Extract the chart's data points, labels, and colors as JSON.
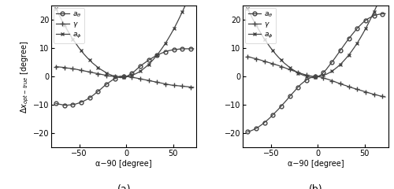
{
  "title_a": "(a)",
  "title_b": "(b)",
  "xlabel": "α−90 [degree]",
  "xlim": [
    -80,
    75
  ],
  "ylim": [
    -25,
    25
  ],
  "xticks": [
    -50,
    0,
    50
  ],
  "yticks": [
    -20,
    -10,
    0,
    10,
    20
  ],
  "legend_labels": [
    "$a_{\\theta}$",
    "$\\gamma$",
    "$a_{\\phi}$"
  ],
  "line_color": "#444444",
  "marker_every": 3,
  "panel_a": {
    "x": [
      -75,
      -72,
      -69,
      -66,
      -63,
      -60,
      -57,
      -54,
      -51,
      -48,
      -45,
      -42,
      -39,
      -36,
      -33,
      -30,
      -27,
      -24,
      -21,
      -18,
      -15,
      -12,
      -9,
      -6,
      -3,
      0,
      3,
      6,
      9,
      12,
      15,
      18,
      21,
      24,
      27,
      30,
      33,
      36,
      39,
      42,
      45,
      48,
      51,
      54,
      57,
      60,
      63,
      66,
      69,
      72
    ],
    "a_theta": [
      -9.5,
      -9.7,
      -9.9,
      -10.1,
      -10.1,
      -10.0,
      -9.9,
      -9.7,
      -9.4,
      -9.0,
      -8.6,
      -8.1,
      -7.5,
      -6.8,
      -6.0,
      -5.2,
      -4.4,
      -3.5,
      -2.7,
      -2.0,
      -1.3,
      -0.7,
      -0.2,
      0.1,
      0.0,
      0.0,
      0.5,
      1.2,
      1.9,
      2.8,
      3.6,
      4.4,
      5.1,
      5.8,
      6.4,
      7.0,
      7.5,
      8.0,
      8.4,
      8.8,
      9.1,
      9.3,
      9.5,
      9.6,
      9.7,
      9.8,
      9.8,
      9.8,
      9.8,
      9.8
    ],
    "gamma": [
      3.5,
      3.4,
      3.3,
      3.2,
      3.0,
      2.9,
      2.7,
      2.6,
      2.4,
      2.2,
      2.0,
      1.8,
      1.6,
      1.4,
      1.2,
      1.0,
      0.8,
      0.6,
      0.4,
      0.2,
      0.1,
      0.0,
      0.0,
      0.0,
      0.0,
      0.0,
      -0.1,
      -0.2,
      -0.4,
      -0.6,
      -0.8,
      -1.0,
      -1.2,
      -1.4,
      -1.6,
      -1.8,
      -2.0,
      -2.2,
      -2.4,
      -2.6,
      -2.8,
      -3.0,
      -3.1,
      -3.2,
      -3.3,
      -3.4,
      -3.5,
      -3.6,
      -3.7,
      -3.8
    ],
    "a_phi": [
      24.0,
      22.0,
      20.0,
      18.2,
      16.5,
      14.8,
      13.2,
      11.8,
      10.4,
      9.1,
      7.9,
      6.8,
      5.8,
      4.8,
      4.0,
      3.2,
      2.5,
      1.9,
      1.3,
      0.8,
      0.4,
      0.1,
      -0.2,
      -0.4,
      -0.3,
      0.0,
      0.3,
      0.5,
      0.8,
      1.3,
      1.9,
      2.6,
      3.4,
      4.3,
      5.3,
      6.4,
      7.6,
      8.9,
      10.3,
      11.8,
      13.4,
      15.1,
      16.9,
      18.8,
      20.8,
      22.9,
      25.0,
      27.2,
      29.5,
      32.0
    ]
  },
  "panel_b": {
    "x": [
      -75,
      -72,
      -69,
      -66,
      -63,
      -60,
      -57,
      -54,
      -51,
      -48,
      -45,
      -42,
      -39,
      -36,
      -33,
      -30,
      -27,
      -24,
      -21,
      -18,
      -15,
      -12,
      -9,
      -6,
      -3,
      0,
      3,
      6,
      9,
      12,
      15,
      18,
      21,
      24,
      27,
      30,
      33,
      36,
      39,
      42,
      45,
      48,
      51,
      54,
      57,
      60,
      63,
      66,
      69,
      72
    ],
    "a_theta": [
      -19.5,
      -19.2,
      -18.8,
      -18.3,
      -17.7,
      -17.0,
      -16.2,
      -15.4,
      -14.5,
      -13.5,
      -12.5,
      -11.5,
      -10.4,
      -9.3,
      -8.2,
      -7.0,
      -5.9,
      -4.8,
      -3.7,
      -2.7,
      -1.9,
      -1.2,
      -0.6,
      -0.2,
      0.0,
      0.0,
      0.5,
      1.5,
      2.5,
      3.8,
      5.1,
      6.4,
      7.8,
      9.2,
      10.6,
      12.0,
      13.3,
      14.6,
      15.8,
      17.0,
      18.0,
      19.0,
      19.8,
      20.5,
      21.0,
      21.5,
      21.8,
      22.0,
      22.1,
      22.2
    ],
    "gamma": [
      7.0,
      6.8,
      6.5,
      6.3,
      6.0,
      5.7,
      5.4,
      5.1,
      4.8,
      4.5,
      4.2,
      3.9,
      3.5,
      3.2,
      2.8,
      2.5,
      2.1,
      1.8,
      1.4,
      1.1,
      0.8,
      0.5,
      0.3,
      0.1,
      0.0,
      0.0,
      -0.2,
      -0.5,
      -0.8,
      -1.1,
      -1.5,
      -1.8,
      -2.2,
      -2.5,
      -2.9,
      -3.2,
      -3.6,
      -3.9,
      -4.2,
      -4.5,
      -4.8,
      -5.1,
      -5.4,
      -5.7,
      -6.0,
      -6.3,
      -6.5,
      -6.8,
      -7.0,
      -7.2
    ],
    "a_phi": [
      24.0,
      22.0,
      20.0,
      18.2,
      16.5,
      14.8,
      13.2,
      11.8,
      10.4,
      9.1,
      7.9,
      6.8,
      5.8,
      4.8,
      4.0,
      3.2,
      2.5,
      1.9,
      1.3,
      0.8,
      0.4,
      0.1,
      -0.2,
      -0.4,
      -0.3,
      0.0,
      0.3,
      0.5,
      0.8,
      1.3,
      1.9,
      2.6,
      3.4,
      4.3,
      5.3,
      6.4,
      7.6,
      8.9,
      10.3,
      11.8,
      13.4,
      15.1,
      16.9,
      18.8,
      20.8,
      22.9,
      25.0,
      27.2,
      29.5,
      32.0
    ]
  }
}
